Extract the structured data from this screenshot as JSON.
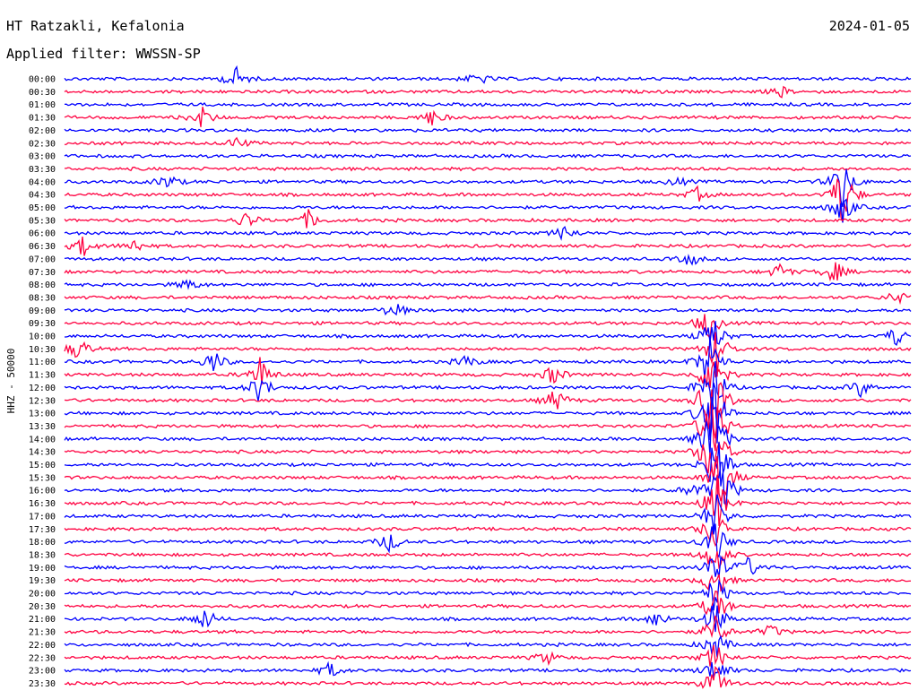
{
  "header": {
    "station": "HT Ratzakli, Kefalonia",
    "filter": "Applied filter: WWSSN-SP",
    "date": "2024-01-05"
  },
  "chart_data": {
    "type": "line",
    "channel_label": "HHZ - 50000",
    "trace_colors": [
      "#0000ff",
      "#ff0040"
    ],
    "rows": [
      "00:00",
      "00:30",
      "01:00",
      "01:30",
      "02:00",
      "02:30",
      "03:00",
      "03:30",
      "04:00",
      "04:30",
      "05:00",
      "05:30",
      "06:00",
      "06:30",
      "07:00",
      "07:30",
      "08:00",
      "08:30",
      "09:00",
      "09:30",
      "10:00",
      "10:30",
      "11:00",
      "11:30",
      "12:00",
      "12:30",
      "13:00",
      "13:30",
      "14:00",
      "14:30",
      "15:00",
      "15:30",
      "16:00",
      "16:30",
      "17:00",
      "17:30",
      "18:00",
      "18:30",
      "19:00",
      "19:30",
      "20:00",
      "20:30",
      "21:00",
      "21:30",
      "22:00",
      "22:30",
      "23:00",
      "23:30"
    ]
  }
}
